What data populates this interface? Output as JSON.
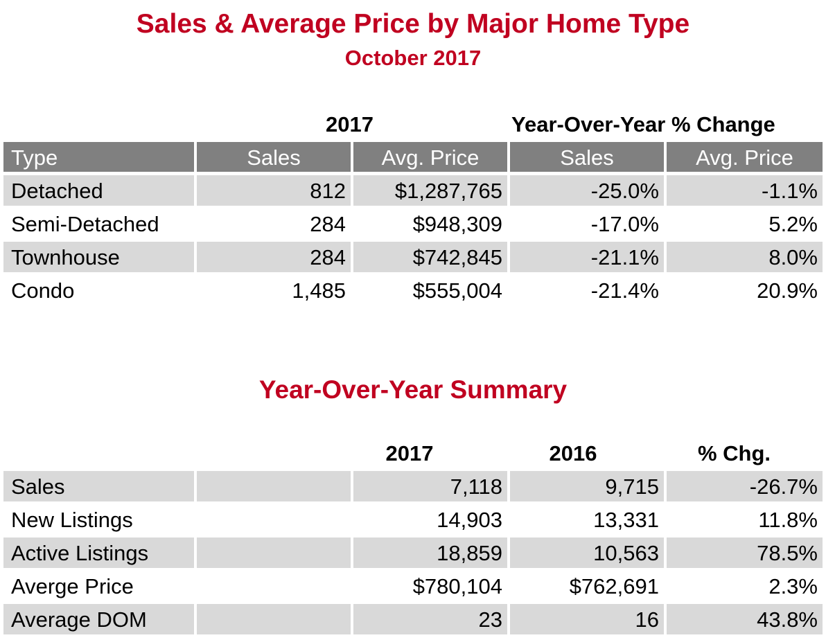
{
  "title": "Sales & Average Price by Major Home Type",
  "subtitle": "October 2017",
  "type_table": {
    "group_year": "2017",
    "group_yoy": "Year-Over-Year % Change",
    "headers": [
      "Type",
      "Sales",
      "Avg. Price",
      "Sales",
      "Avg. Price"
    ],
    "rows": [
      {
        "type": "Detached",
        "sales": "812",
        "avg_price": "$1,287,765",
        "yoy_sales": "-25.0%",
        "yoy_price": "-1.1%"
      },
      {
        "type": "Semi-Detached",
        "sales": "284",
        "avg_price": "$948,309",
        "yoy_sales": "-17.0%",
        "yoy_price": "5.2%"
      },
      {
        "type": "Townhouse",
        "sales": "284",
        "avg_price": "$742,845",
        "yoy_sales": "-21.1%",
        "yoy_price": "8.0%"
      },
      {
        "type": "Condo",
        "sales": "1,485",
        "avg_price": "$555,004",
        "yoy_sales": "-21.4%",
        "yoy_price": "20.9%"
      }
    ]
  },
  "summary_title": "Year-Over-Year Summary",
  "summary_table": {
    "headers": [
      "2017",
      "2016",
      "% Chg."
    ],
    "rows": [
      {
        "metric": "Sales",
        "y2017": "7,118",
        "y2016": "9,715",
        "chg": "-26.7%"
      },
      {
        "metric": "New Listings",
        "y2017": "14,903",
        "y2016": "13,331",
        "chg": "11.8%"
      },
      {
        "metric": "Active Listings",
        "y2017": "18,859",
        "y2016": "10,563",
        "chg": "78.5%"
      },
      {
        "metric": "Averge Price",
        "y2017": "$780,104",
        "y2016": "$762,691",
        "chg": "2.3%"
      },
      {
        "metric": "Average DOM",
        "y2017": "23",
        "y2016": "16",
        "chg": "43.8%"
      }
    ]
  },
  "colors": {
    "title": "#c00020",
    "header_bg": "#808080",
    "stripe_bg": "#d9d9d9"
  }
}
